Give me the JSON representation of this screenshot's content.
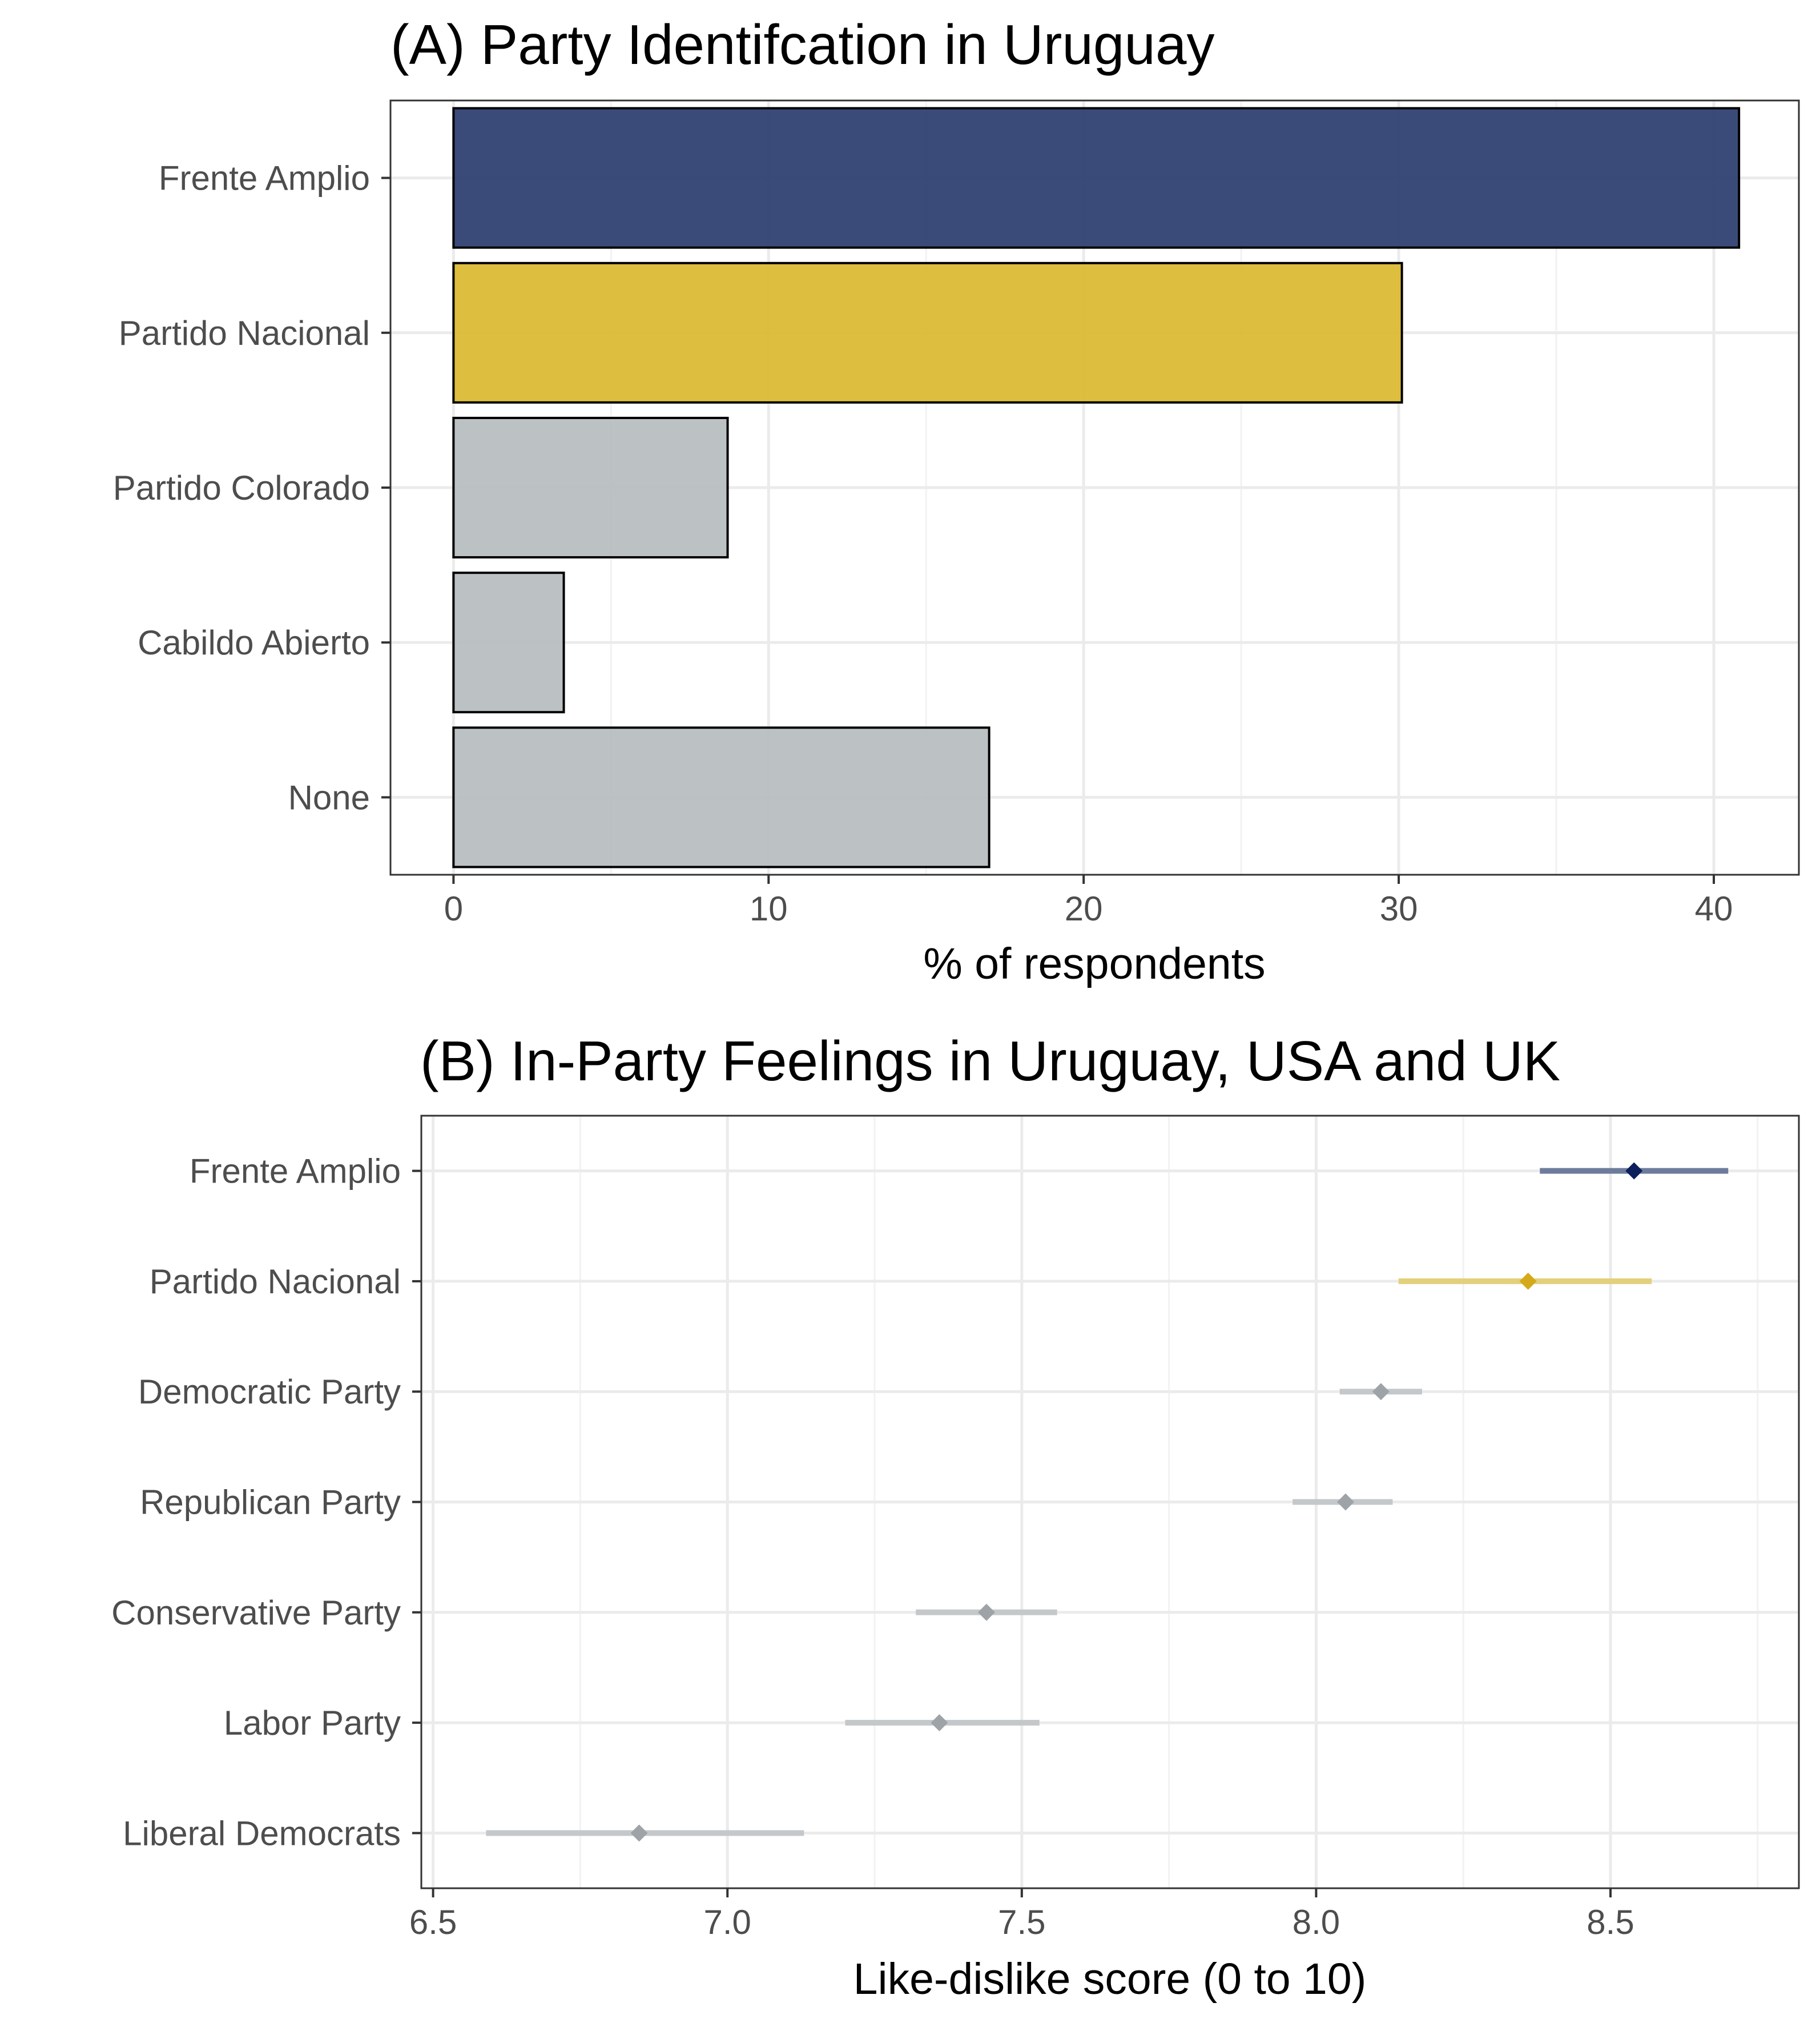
{
  "chart_data": [
    {
      "type": "bar",
      "orientation": "horizontal",
      "title": "(A) Party Identifcation in Uruguay",
      "xlabel": "% of respondents",
      "ylabel": "",
      "categories": [
        "Frente Amplio",
        "Partido Nacional",
        "Partido Colorado",
        "Cabildo Abierto",
        "None"
      ],
      "values": [
        40.8,
        30.1,
        8.7,
        3.5,
        17.0
      ],
      "colors": [
        "#2b3d70",
        "#dbb92f",
        "#b7bcbf",
        "#b7bcbf",
        "#b7bcbf"
      ],
      "xlim": [
        -2,
        42.7
      ],
      "xticks": [
        0,
        10,
        20,
        30,
        40
      ],
      "xtick_labels": [
        "0",
        "10",
        "20",
        "30",
        "40"
      ],
      "grid": true,
      "legend": "none"
    },
    {
      "type": "scatter",
      "orientation": "horizontal",
      "title": "(B) In-Party Feelings in Uruguay, USA and UK",
      "xlabel": "Like-dislike score (0 to 10)",
      "ylabel": "",
      "categories": [
        "Frente Amplio",
        "Partido Nacional",
        "Democratic Party",
        "Republican Party",
        "Conservative Party",
        "Labor Party",
        "Liberal Democrats"
      ],
      "values": [
        8.54,
        8.36,
        8.11,
        8.05,
        7.44,
        7.36,
        6.85
      ],
      "ci_lower": [
        8.38,
        8.14,
        8.04,
        7.96,
        7.32,
        7.2,
        6.59
      ],
      "ci_upper": [
        8.7,
        8.57,
        8.18,
        8.13,
        7.56,
        7.53,
        7.13
      ],
      "point_colors": [
        "#0d1f5c",
        "#d4aa1a",
        "#9ea3a7",
        "#9ea3a7",
        "#9ea3a7",
        "#9ea3a7",
        "#9ea3a7"
      ],
      "line_colors": [
        "#6e7c9c",
        "#e3d07c",
        "#c4c8cb",
        "#c4c8cb",
        "#c4c8cb",
        "#c4c8cb",
        "#c4c8cb"
      ],
      "xlim": [
        6.48,
        8.82
      ],
      "xticks": [
        6.5,
        7.0,
        7.5,
        8.0,
        8.5
      ],
      "xtick_labels": [
        "6.5",
        "7.0",
        "7.5",
        "8.0",
        "8.5"
      ],
      "grid": true,
      "legend": "none"
    }
  ]
}
